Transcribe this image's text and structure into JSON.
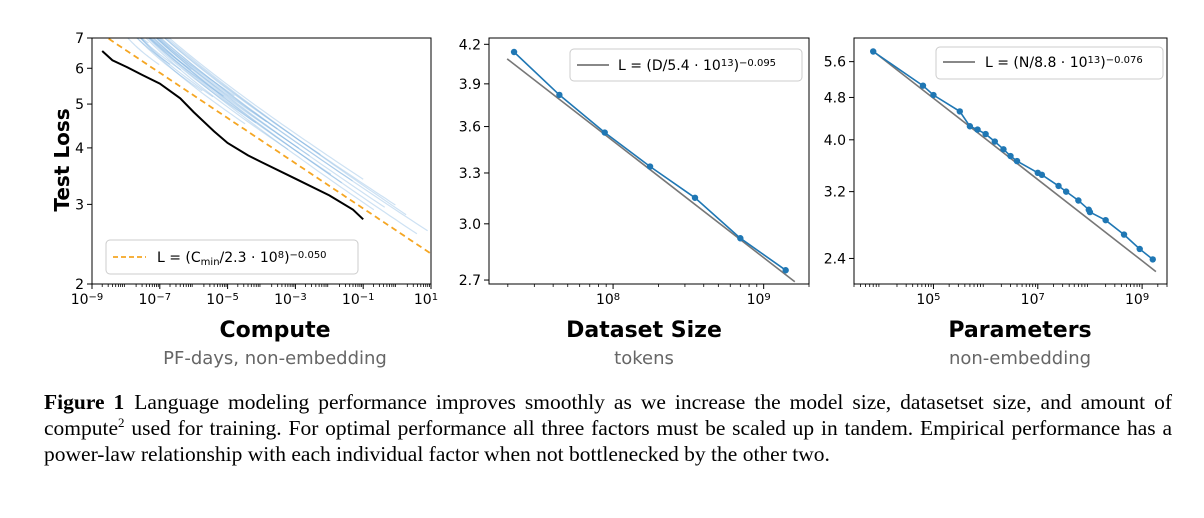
{
  "chart_data": [
    {
      "type": "line",
      "scale": {
        "x": "log",
        "y": "log"
      },
      "xlim": [
        1e-09,
        10
      ],
      "ylim": [
        2,
        7
      ],
      "xticks": [
        1e-09,
        1e-07,
        1e-05,
        0.001,
        0.1,
        10
      ],
      "xtick_exponents": [
        "−9",
        "−7",
        "−5",
        "−3",
        "−1",
        "1"
      ],
      "yticks": [
        2,
        3,
        4,
        5,
        6,
        7
      ],
      "ytick_labels": [
        "2",
        "3",
        "4",
        "5",
        "6",
        "7"
      ],
      "ylabel": "Test Loss",
      "xlabel": "Compute",
      "xsublabel": "PF-days, non-embedding",
      "legend": {
        "placement": "lower-left",
        "text": "L = (C<sub>min</sub>/2.3 · 10<sup>8</sup>)<sup>−0.050</sup>",
        "style": "dashed",
        "color": "#f5a623"
      },
      "fit": {
        "coef": 230000000.0,
        "exponent": -0.05,
        "x_range": [
          1e-09,
          10
        ]
      },
      "envelope_x": [
        2e-09,
        4e-09,
        1e-08,
        3e-08,
        1e-07,
        4e-07,
        1e-06,
        4e-06,
        1e-05,
        4e-05,
        0.0001,
        0.001,
        0.01,
        0.05,
        0.1
      ],
      "envelope_y": [
        6.55,
        6.25,
        6.05,
        5.8,
        5.55,
        5.15,
        4.8,
        4.35,
        4.1,
        3.85,
        3.72,
        3.42,
        3.14,
        2.92,
        2.78
      ],
      "run_count": 30,
      "colors": {
        "runs": "#6fa8dc",
        "envelope": "#000000",
        "fit": "#f5a623"
      }
    },
    {
      "type": "line",
      "scale": {
        "x": "log",
        "y": "log"
      },
      "xlim": [
        15000000.0,
        2000000000.0
      ],
      "ylim": [
        2.68,
        4.25
      ],
      "xticks": [
        100000000.0,
        1000000000.0
      ],
      "xtick_exponents": [
        "8",
        "9"
      ],
      "yticks": [
        2.7,
        3.0,
        3.3,
        3.6,
        3.9,
        4.2
      ],
      "ytick_labels": [
        "2.7",
        "3.0",
        "3.3",
        "3.6",
        "3.9",
        "4.2"
      ],
      "xlabel": "Dataset Size",
      "xsublabel": "tokens",
      "legend": {
        "placement": "top-right",
        "text": "L = (D/5.4 · 10<sup>13</sup>)<sup>−0.095</sup>",
        "color": "#777777"
      },
      "fit": {
        "coef": 54000000000000.0,
        "exponent": -0.095
      },
      "x": [
        22000000.0,
        44000000.0,
        88000000.0,
        176000000.0,
        350000000.0,
        700000000.0,
        1400000000.0
      ],
      "y": [
        4.14,
        3.82,
        3.56,
        3.34,
        3.15,
        2.92,
        2.75
      ],
      "colors": {
        "data": "#1f77b4",
        "fit": "#777777"
      }
    },
    {
      "type": "line",
      "scale": {
        "x": "log",
        "y": "log"
      },
      "xlim": [
        3000.0,
        3000000000.0
      ],
      "ylim": [
        2.15,
        6.2
      ],
      "xticks": [
        100000.0,
        10000000.0,
        1000000000.0
      ],
      "xtick_exponents": [
        "5",
        "7",
        "9"
      ],
      "yticks": [
        2.4,
        3.2,
        4.0,
        4.8,
        5.6
      ],
      "ytick_labels": [
        "2.4",
        "3.2",
        "4.0",
        "4.8",
        "5.6"
      ],
      "xlabel": "Parameters",
      "xsublabel": "non-embedding",
      "legend": {
        "placement": "top-right",
        "text": "L = (N/8.8 · 10<sup>13</sup>)<sup>−0.076</sup>",
        "color": "#777777"
      },
      "fit": {
        "coef": 88000000000000.0,
        "exponent": -0.076
      },
      "x": [
        7000.0,
        63000.0,
        100000.0,
        320000.0,
        500000.0,
        700000.0,
        1000000.0,
        1500000.0,
        2200000.0,
        3000000.0,
        4000000.0,
        10000000.0,
        12000000.0,
        25000000.0,
        35000000.0,
        60000000.0,
        95000000.0,
        100000000.0,
        200000000.0,
        450000000.0,
        900000000.0,
        1600000000.0
      ],
      "y": [
        5.85,
        5.05,
        4.85,
        4.52,
        4.24,
        4.18,
        4.1,
        3.97,
        3.84,
        3.73,
        3.65,
        3.47,
        3.44,
        3.28,
        3.2,
        3.08,
        2.96,
        2.93,
        2.83,
        2.66,
        2.5,
        2.39
      ],
      "colors": {
        "data": "#1f77b4",
        "fit": "#777777"
      }
    }
  ],
  "caption": {
    "label": "Figure 1",
    "text_a": "Language modeling performance improves smoothly as we increase the model size, datasetset size, and amount of compute",
    "footnote_mark": "2",
    "text_b": " used for training. For optimal performance all three factors must be scaled up in tandem. Empirical performance has a power-law relationship with each individual factor when not bottlenecked by the other two."
  }
}
